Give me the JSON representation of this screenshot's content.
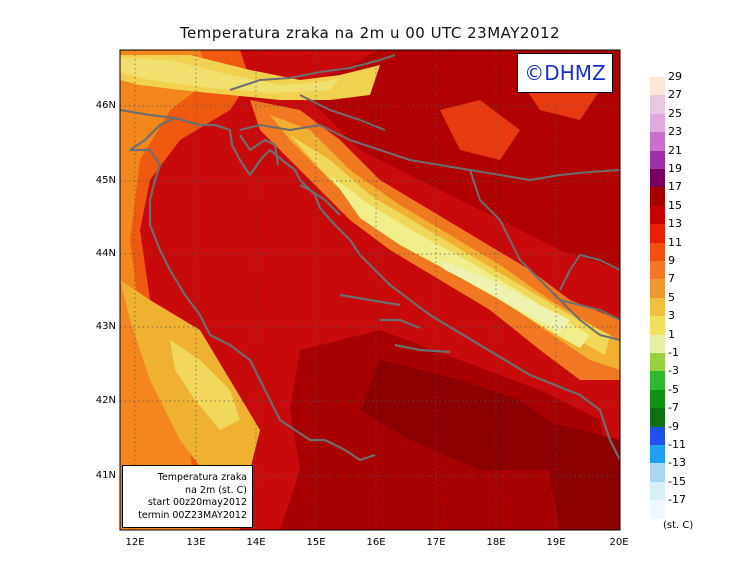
{
  "title": "Temperatura zraka na 2m u 00 UTC 23MAY2012",
  "logo": "©DHMZ",
  "info_box": {
    "line1": "Temperatura zraka",
    "line2": "na 2m (st. C)",
    "line3": "start 00z20may2012",
    "line4": "termin 00Z23MAY2012"
  },
  "lat_labels": [
    "46N",
    "45N",
    "44N",
    "43N",
    "42N",
    "41N"
  ],
  "lon_labels": [
    "12E",
    "13E",
    "14E",
    "15E",
    "16E",
    "17E",
    "18E",
    "19E",
    "20E"
  ],
  "colorbar": {
    "labels": [
      "29",
      "27",
      "25",
      "23",
      "21",
      "19",
      "17",
      "15",
      "13",
      "11",
      "9",
      "7",
      "5",
      "3",
      "1",
      "-1",
      "-3",
      "-5",
      "-7",
      "-9",
      "-11",
      "-13",
      "-15",
      "-17"
    ],
    "colors": [
      "#fbe8d8",
      "#e8c8e0",
      "#e0a8dc",
      "#c870cc",
      "#a030a8",
      "#7a0060",
      "#a80000",
      "#c80000",
      "#e82000",
      "#f05010",
      "#f47828",
      "#ee9a30",
      "#f0c040",
      "#f0e060",
      "#e8f0a8",
      "#98d040",
      "#30b830",
      "#109010",
      "#107010",
      "#2050f0",
      "#20a0f0",
      "#a8d8f0",
      "#d8f0f8",
      "#f0f8ff"
    ],
    "units": "(st. C)"
  }
}
